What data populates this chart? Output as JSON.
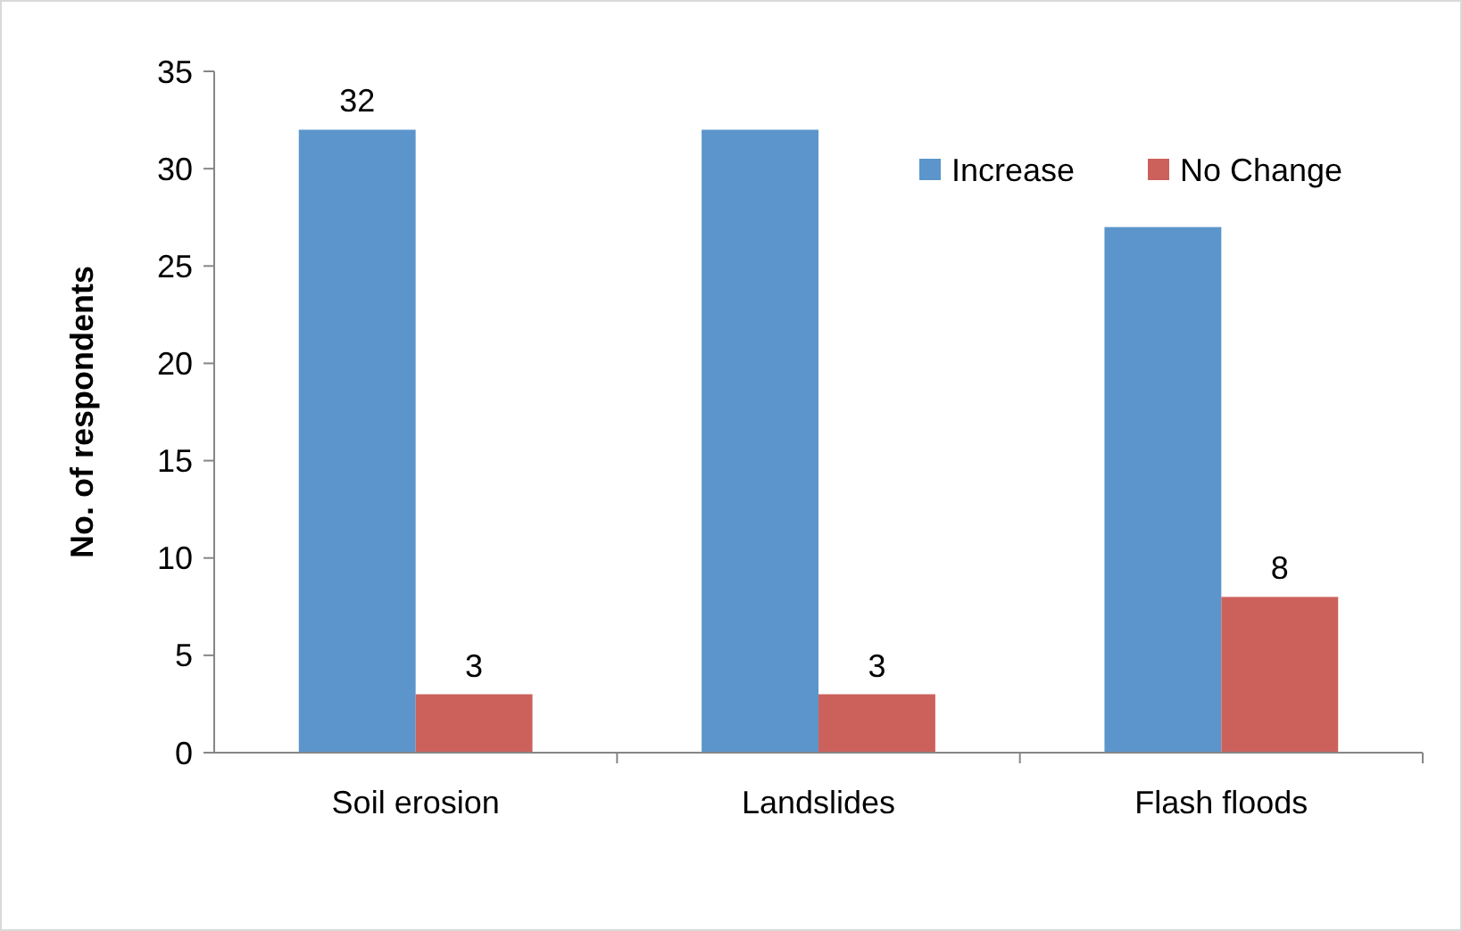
{
  "chart_data": {
    "type": "bar",
    "ylabel": "No. of respondents",
    "categories": [
      "Soil erosion",
      "Landslides",
      "Flash floods"
    ],
    "series": [
      {
        "name": "Increase",
        "color": "#5b95cb",
        "values": [
          32,
          32,
          27
        ],
        "value_labels": [
          "32",
          null,
          null
        ]
      },
      {
        "name": "No Change",
        "color": "#cc615c",
        "values": [
          3,
          3,
          8
        ],
        "value_labels": [
          "3",
          "3",
          "8"
        ]
      }
    ],
    "ylim": [
      0,
      35
    ],
    "yticks": [
      0,
      5,
      10,
      15,
      20,
      25,
      30,
      35
    ],
    "grid": false,
    "legend": "top right"
  }
}
